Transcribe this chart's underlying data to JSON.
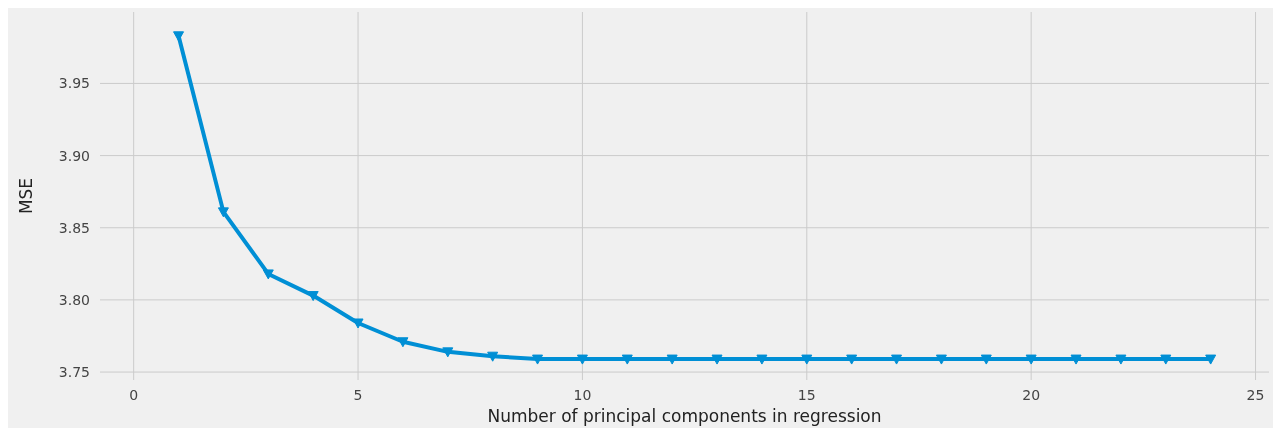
{
  "chart_data": {
    "type": "line",
    "xlabel": "Number of principal components in regression",
    "ylabel": "MSE",
    "x": [
      1,
      2,
      3,
      4,
      5,
      6,
      7,
      8,
      9,
      10,
      11,
      12,
      13,
      14,
      15,
      16,
      17,
      18,
      19,
      20,
      21,
      22,
      23,
      24
    ],
    "series": [
      {
        "color": "#008fd5",
        "values": [
          3.983,
          3.861,
          3.818,
          3.803,
          3.784,
          3.771,
          3.764,
          3.761,
          3.759,
          3.759,
          3.759,
          3.759,
          3.759,
          3.759,
          3.759,
          3.759,
          3.759,
          3.759,
          3.759,
          3.759,
          3.759,
          3.759,
          3.759,
          3.759
        ]
      }
    ],
    "xlim": [
      -0.75,
      25.3
    ],
    "xticks": [
      0,
      5,
      10,
      15,
      20,
      25
    ],
    "ylim": [
      3.7445,
      3.9995
    ],
    "yticks": [
      {
        "value": 3.75,
        "label": "3.75"
      },
      {
        "value": 3.8,
        "label": "3.80"
      },
      {
        "value": 3.85,
        "label": "3.85"
      },
      {
        "value": 3.9,
        "label": "3.90"
      },
      {
        "value": 3.95,
        "label": "3.95"
      }
    ],
    "grid": true,
    "marker": "triangle",
    "line_style": "solid"
  }
}
